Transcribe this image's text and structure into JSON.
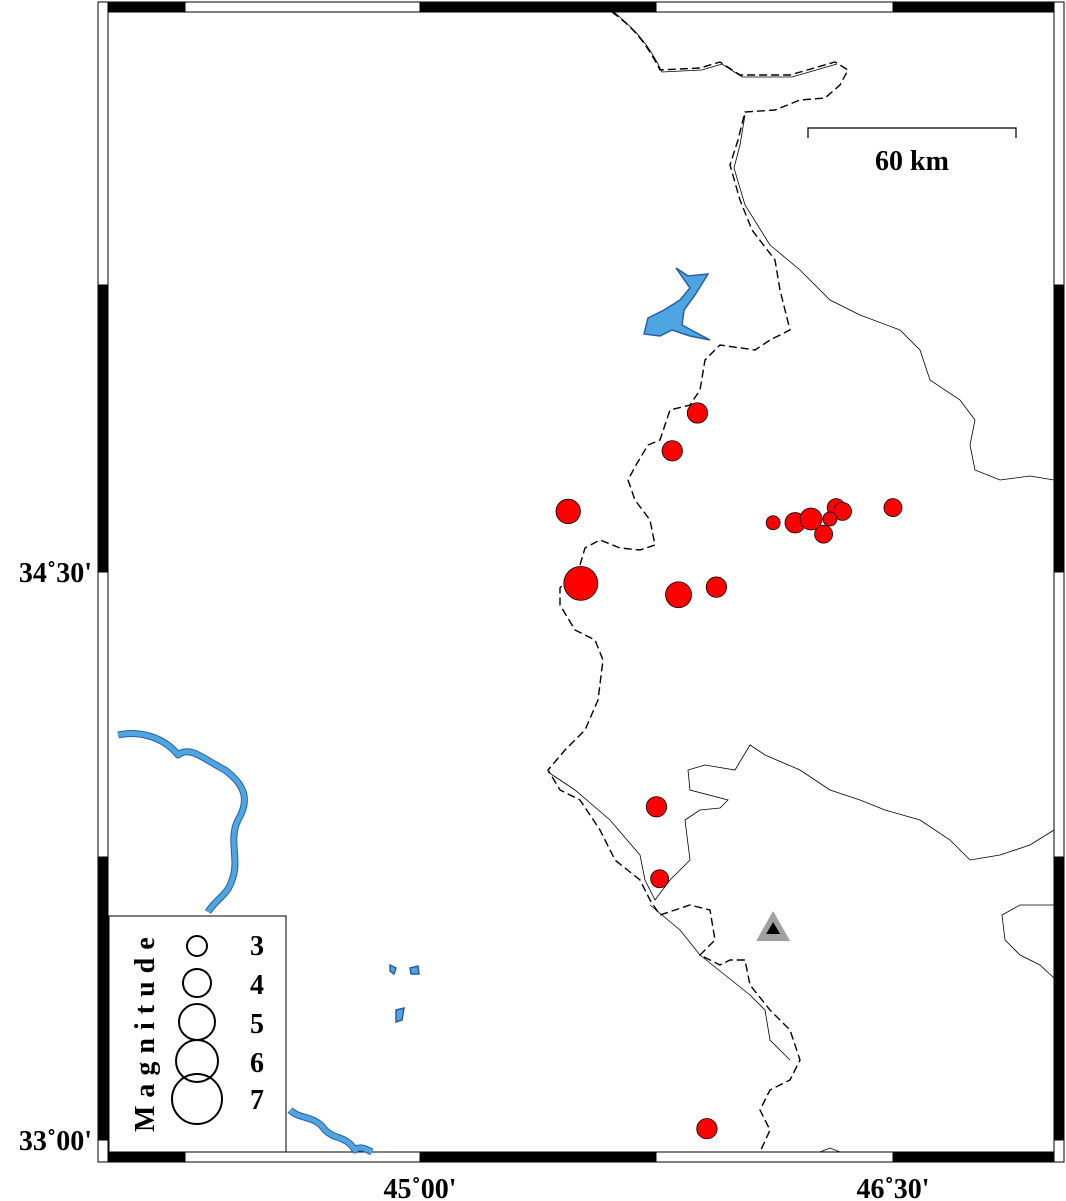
{
  "map": {
    "lon_labels": [
      {
        "lon": 45.0,
        "text": "45˚00'"
      },
      {
        "lon": 46.5,
        "text": "46˚30'"
      }
    ],
    "lat_labels": [
      {
        "lat": 34.5,
        "text": "34˚30'"
      },
      {
        "lat": 33.0,
        "text": "33˚00'"
      }
    ],
    "scale_bar": {
      "label": "60 km"
    },
    "colors": {
      "event": "#ff0000",
      "water": "#4da6e0",
      "station": "#a0a0a0"
    },
    "station_icon": "triangle-icon",
    "events": [
      {
        "lon": 45.88,
        "lat": 34.92,
        "mag": 3.8
      },
      {
        "lon": 45.8,
        "lat": 34.82,
        "mag": 3.8
      },
      {
        "lon": 45.47,
        "lat": 34.66,
        "mag": 4.3
      },
      {
        "lon": 45.51,
        "lat": 34.47,
        "mag": 5.5
      },
      {
        "lon": 45.82,
        "lat": 34.44,
        "mag": 4.5
      },
      {
        "lon": 45.94,
        "lat": 34.46,
        "mag": 3.8
      },
      {
        "lon": 46.12,
        "lat": 34.63,
        "mag": 3.0
      },
      {
        "lon": 46.19,
        "lat": 34.63,
        "mag": 3.8
      },
      {
        "lon": 46.24,
        "lat": 34.64,
        "mag": 4.0
      },
      {
        "lon": 46.32,
        "lat": 34.67,
        "mag": 3.5
      },
      {
        "lon": 46.34,
        "lat": 34.66,
        "mag": 3.5
      },
      {
        "lon": 46.3,
        "lat": 34.64,
        "mag": 3.0
      },
      {
        "lon": 46.28,
        "lat": 34.6,
        "mag": 3.5
      },
      {
        "lon": 46.5,
        "lat": 34.67,
        "mag": 3.5
      },
      {
        "lon": 45.75,
        "lat": 33.88,
        "mag": 3.8
      },
      {
        "lon": 45.76,
        "lat": 33.69,
        "mag": 3.5
      },
      {
        "lon": 45.91,
        "lat": 33.03,
        "mag": 3.8
      }
    ],
    "station": {
      "lon": 46.12,
      "lat": 33.56
    }
  },
  "legend": {
    "title": "Magnitude",
    "items": [
      "3",
      "4",
      "5",
      "6",
      "7"
    ]
  }
}
